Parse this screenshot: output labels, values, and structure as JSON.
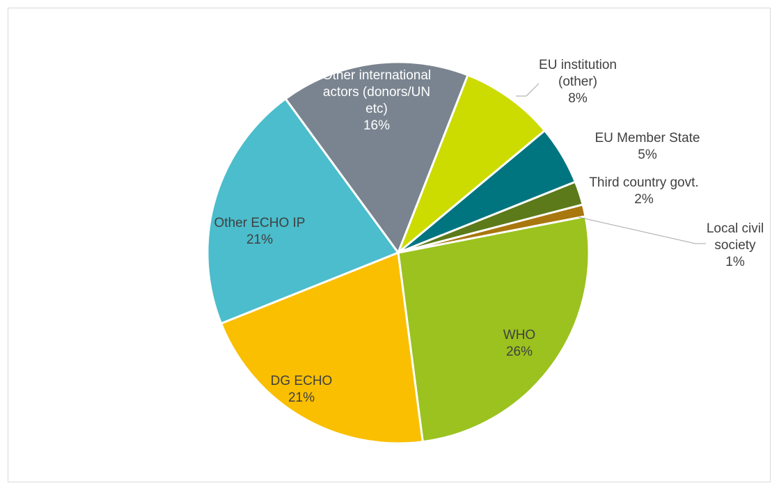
{
  "chart_data": {
    "type": "pie",
    "slices": [
      {
        "name": "WHO",
        "value": 26,
        "label": "26%",
        "color": "#9bc21e",
        "label_color": "#404040"
      },
      {
        "name": "DG ECHO",
        "value": 21,
        "label": "21%",
        "color": "#f9bf00",
        "label_color": "#404040"
      },
      {
        "name": "Other ECHO IP",
        "value": 21,
        "label": "21%",
        "color": "#4bbdcc",
        "label_color": "#404040"
      },
      {
        "name": "Other international actors (donors/UN etc)",
        "value": 16,
        "label": "16%",
        "color": "#7a8490",
        "label_color": "#ffffff"
      },
      {
        "name": "EU institution (other)",
        "value": 8,
        "label": "8%",
        "color": "#ccdb00",
        "label_color": "#404040"
      },
      {
        "name": "EU Member State",
        "value": 5,
        "label": "5%",
        "color": "#007580",
        "label_color": "#404040"
      },
      {
        "name": "Third country govt.",
        "value": 2,
        "label": "2%",
        "color": "#5c7a1a",
        "label_color": "#404040"
      },
      {
        "name": "Local civil society",
        "value": 1,
        "label": "1%",
        "color": "#a8770e",
        "label_color": "#404040"
      }
    ],
    "legend": "none",
    "label_mode": "category-name-and-percent"
  }
}
